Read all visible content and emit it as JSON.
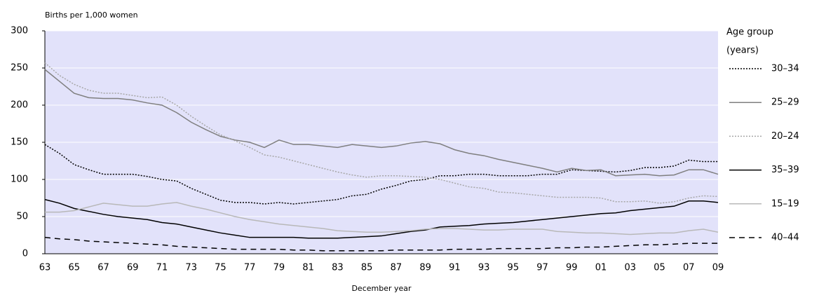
{
  "chart_data": {
    "type": "line",
    "y_label": "Births per 1,000 women",
    "x_label": "December year",
    "legend_title": [
      "Age group",
      "(years)"
    ],
    "categories": [
      "63",
      null,
      "65",
      null,
      "67",
      null,
      "69",
      null,
      "71",
      null,
      "73",
      null,
      "75",
      null,
      "77",
      null,
      "79",
      null,
      "81",
      null,
      "83",
      null,
      "85",
      null,
      "87",
      null,
      "89",
      null,
      "91",
      null,
      "93",
      null,
      "95",
      null,
      "97",
      null,
      "99",
      null,
      "01",
      null,
      "03",
      null,
      "05",
      null,
      "07",
      null,
      "09"
    ],
    "ylim": [
      0,
      300
    ],
    "yticks": [
      0,
      50,
      100,
      150,
      200,
      250,
      300
    ],
    "grid": true,
    "background": "#e2e2fa",
    "series": [
      {
        "name": "30–34",
        "color": "#000000",
        "dash": "dotted",
        "values": [
          147,
          135,
          120,
          113,
          107,
          107,
          107,
          104,
          100,
          98,
          88,
          80,
          72,
          69,
          69,
          67,
          69,
          67,
          69,
          71,
          73,
          78,
          80,
          87,
          92,
          98,
          100,
          105,
          105,
          107,
          107,
          105,
          105,
          105,
          107,
          107,
          113,
          112,
          111,
          110,
          112,
          116,
          116,
          118,
          126,
          124,
          124
        ]
      },
      {
        "name": "25–29",
        "color": "#7f7f7f",
        "dash": "solid",
        "values": [
          248,
          232,
          216,
          210,
          209,
          209,
          207,
          203,
          200,
          190,
          177,
          167,
          158,
          153,
          150,
          143,
          153,
          147,
          147,
          145,
          143,
          147,
          145,
          143,
          145,
          149,
          151,
          148,
          140,
          135,
          132,
          127,
          123,
          119,
          115,
          110,
          115,
          112,
          113,
          105,
          106,
          107,
          105,
          106,
          113,
          113,
          107
        ]
      },
      {
        "name": "20–24",
        "color": "#a6a6a6",
        "dash": "dotted",
        "values": [
          257,
          240,
          228,
          220,
          216,
          216,
          213,
          210,
          211,
          200,
          185,
          172,
          160,
          152,
          143,
          133,
          130,
          125,
          120,
          115,
          110,
          106,
          103,
          105,
          105,
          104,
          103,
          100,
          95,
          90,
          88,
          83,
          82,
          80,
          78,
          76,
          76,
          76,
          75,
          70,
          70,
          71,
          68,
          70,
          75,
          78,
          77
        ]
      },
      {
        "name": "35–39",
        "color": "#000000",
        "dash": "solid",
        "values": [
          73,
          68,
          61,
          57,
          53,
          50,
          48,
          46,
          42,
          40,
          36,
          32,
          28,
          25,
          22,
          22,
          22,
          22,
          21,
          21,
          21,
          22,
          23,
          24,
          27,
          30,
          32,
          36,
          37,
          38,
          40,
          41,
          42,
          44,
          46,
          48,
          50,
          52,
          54,
          55,
          58,
          60,
          62,
          64,
          71,
          71,
          69
        ]
      },
      {
        "name": "15–19",
        "color": "#b8b8b8",
        "dash": "solid",
        "values": [
          56,
          56,
          58,
          63,
          68,
          66,
          64,
          64,
          67,
          69,
          64,
          60,
          55,
          50,
          46,
          43,
          40,
          38,
          36,
          34,
          31,
          30,
          29,
          29,
          30,
          31,
          33,
          34,
          34,
          33,
          32,
          32,
          33,
          33,
          33,
          30,
          29,
          28,
          28,
          27,
          26,
          27,
          28,
          28,
          31,
          33,
          29
        ]
      },
      {
        "name": "40–44",
        "color": "#000000",
        "dash": "dashed",
        "values": [
          22,
          20,
          19,
          17,
          16,
          15,
          14,
          13,
          12,
          10,
          9,
          8,
          7,
          6,
          6,
          6,
          6,
          5,
          5,
          4,
          4,
          4,
          4,
          4,
          5,
          5,
          5,
          5,
          6,
          6,
          6,
          7,
          7,
          7,
          7,
          8,
          8,
          9,
          9,
          10,
          11,
          12,
          12,
          13,
          14,
          14,
          14
        ]
      }
    ]
  }
}
